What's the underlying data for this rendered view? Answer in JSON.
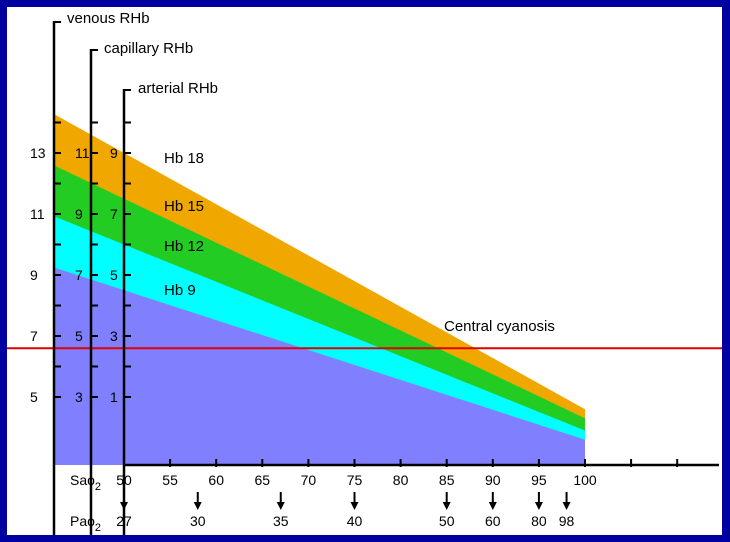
{
  "chart_data": {
    "type": "area",
    "colors": {
      "background": "#0000a0",
      "base": "#8080ff",
      "hb18": "#f0a800",
      "hb15": "#22cc22",
      "hb12": "#00ffff",
      "cyanosis_line": "#e00000"
    },
    "x_sao2": [
      50,
      55,
      60,
      65,
      70,
      75,
      80,
      85,
      90,
      95,
      100
    ],
    "pao2_ticks": [
      {
        "sao2": 50,
        "label": "27"
      },
      {
        "sao2": 58,
        "label": "30"
      },
      {
        "sao2": 67,
        "label": "35"
      },
      {
        "sao2": 75,
        "label": "40"
      },
      {
        "sao2": 85,
        "label": "50"
      },
      {
        "sao2": 90,
        "label": "60"
      },
      {
        "sao2": 95,
        "label": "80"
      },
      {
        "sao2": 98,
        "label": "98"
      }
    ],
    "x_labels": {
      "sao2": "Sao",
      "sao2_sub": "2",
      "pao2": "Pao",
      "pao2_sub": "2"
    },
    "axes": {
      "venous": {
        "label": "venous RHb",
        "ticks": [
          5,
          7,
          9,
          11,
          13
        ],
        "range": [
          1,
          15
        ]
      },
      "capillary": {
        "label": "capillary RHb",
        "ticks": [
          3,
          5,
          7,
          9,
          11
        ],
        "range": [
          -1,
          13
        ]
      },
      "arterial": {
        "label": "arterial RHb",
        "ticks": [
          1,
          3,
          5,
          7,
          9
        ],
        "range": [
          -3,
          11
        ]
      }
    },
    "series": [
      {
        "name": "Hb 9",
        "arterial_start": 4.5,
        "color": "#8080ff"
      },
      {
        "name": "Hb 12",
        "arterial_start": 6.0,
        "color": "#00ffff"
      },
      {
        "name": "Hb 15",
        "arterial_start": 7.5,
        "color": "#22cc22"
      },
      {
        "name": "Hb 18",
        "arterial_start": 9.0,
        "color": "#f0a800"
      }
    ],
    "sao2_end": 100,
    "series_end_arterial": {
      "Hb 9": -0.4,
      "Hb 12": -0.1,
      "Hb 15": 0.3,
      "Hb 18": 0.6
    },
    "threshold": {
      "label": "Central cyanosis",
      "venous_value": 6.6
    }
  }
}
